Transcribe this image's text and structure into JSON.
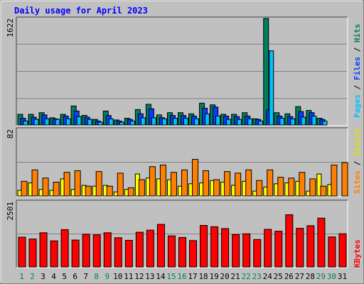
{
  "title": "Daily usage for April 2023",
  "right_labels": {
    "panel1": [
      "Pages",
      "Files",
      "Hits"
    ],
    "panel2": [
      "Sites",
      "Visits"
    ],
    "panel3": [
      "KBytes"
    ]
  },
  "y_max_labels": [
    "1622",
    "82",
    "2501"
  ],
  "colors": {
    "hits": "#00805c",
    "files": "#0040ff",
    "pages": "#00c0ff",
    "visits": "#ffff00",
    "sites": "#ff8000",
    "kbytes": "#ff0000",
    "title": "#0000ff",
    "weekend_day": "#00805c",
    "weekday": "#000000",
    "panel_bg": "#c0c0c0"
  },
  "chart_data": [
    {
      "type": "bar",
      "panel": "hits-files-pages",
      "categories": [
        "1",
        "2",
        "3",
        "4",
        "5",
        "6",
        "7",
        "8",
        "9",
        "10",
        "11",
        "12",
        "13",
        "14",
        "15",
        "16",
        "17",
        "18",
        "19",
        "20",
        "21",
        "22",
        "23",
        "24",
        "25",
        "26",
        "27",
        "28",
        "29",
        "30",
        "31"
      ],
      "ylim": [
        0,
        1622
      ],
      "ytick_label": "1622",
      "series": [
        {
          "name": "Hits",
          "values": [
            162,
            162,
            187,
            110,
            162,
            289,
            146,
            85,
            212,
            76,
            102,
            234,
            315,
            153,
            187,
            187,
            170,
            332,
            306,
            162,
            162,
            187,
            93,
            1622,
            187,
            170,
            280,
            221,
            102,
            0,
            0
          ]
        },
        {
          "name": "Files",
          "values": [
            102,
            119,
            153,
            93,
            136,
            212,
            119,
            60,
            144,
            60,
            85,
            170,
            247,
            110,
            144,
            144,
            136,
            255,
            272,
            136,
            128,
            136,
            85,
            230,
            136,
            128,
            204,
            187,
            85,
            0,
            0
          ]
        },
        {
          "name": "Pages",
          "values": [
            60,
            85,
            94,
            85,
            94,
            128,
            85,
            43,
            94,
            43,
            60,
            110,
            110,
            94,
            102,
            102,
            94,
            170,
            136,
            85,
            85,
            94,
            60,
            1130,
            102,
            94,
            119,
            136,
            60,
            0,
            0
          ]
        }
      ]
    },
    {
      "type": "bar",
      "panel": "visits-sites",
      "categories": [
        "1",
        "2",
        "3",
        "4",
        "5",
        "6",
        "7",
        "8",
        "9",
        "10",
        "11",
        "12",
        "13",
        "14",
        "15",
        "16",
        "17",
        "18",
        "19",
        "20",
        "21",
        "22",
        "23",
        "24",
        "25",
        "26",
        "27",
        "28",
        "29",
        "30",
        "31"
      ],
      "ylim": [
        0,
        82
      ],
      "ytick_label": "82",
      "series": [
        {
          "name": "Visits",
          "values": [
            7,
            16,
            8,
            7,
            21,
            8,
            13,
            12,
            13,
            5,
            8,
            27,
            22,
            21,
            20,
            12,
            15,
            16,
            19,
            17,
            13,
            18,
            6,
            11,
            15,
            16,
            18,
            6,
            27,
            14,
            0
          ]
        },
        {
          "name": "Sites",
          "values": [
            18,
            32,
            22,
            17,
            29,
            31,
            12,
            30,
            12,
            28,
            10,
            20,
            36,
            38,
            29,
            32,
            45,
            31,
            20,
            30,
            28,
            32,
            19,
            32,
            23,
            22,
            29,
            21,
            12,
            38,
            41
          ]
        }
      ]
    },
    {
      "type": "bar",
      "panel": "kbytes",
      "categories": [
        "1",
        "2",
        "3",
        "4",
        "5",
        "6",
        "7",
        "8",
        "9",
        "10",
        "11",
        "12",
        "13",
        "14",
        "15",
        "16",
        "17",
        "18",
        "19",
        "20",
        "21",
        "22",
        "23",
        "24",
        "25",
        "26",
        "27",
        "28",
        "29",
        "30",
        "31"
      ],
      "ylim": [
        0,
        2501
      ],
      "ytick_label": "2501",
      "series": [
        {
          "name": "KBytes",
          "values": [
            1140,
            1070,
            1310,
            1000,
            1430,
            1030,
            1250,
            1230,
            1310,
            1120,
            1020,
            1330,
            1410,
            1630,
            1190,
            1130,
            1010,
            1590,
            1540,
            1470,
            1240,
            1270,
            1050,
            1440,
            1370,
            2000,
            1480,
            1580,
            1870,
            1150,
            1270
          ]
        }
      ]
    }
  ]
}
